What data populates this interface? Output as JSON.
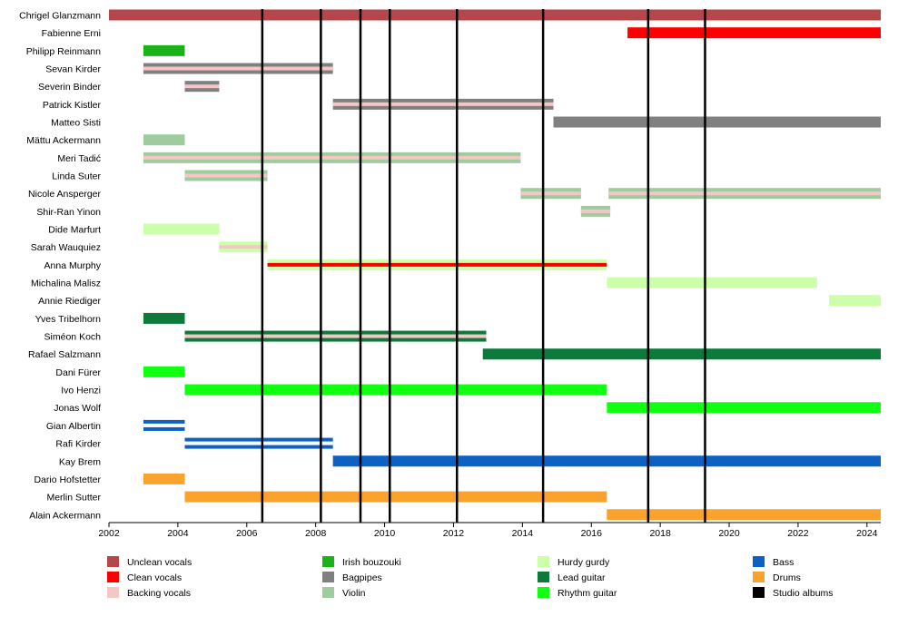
{
  "chart_data": {
    "type": "timeline",
    "x_axis": {
      "min": 2002,
      "max": 2024.4,
      "ticks": [
        2002,
        2004,
        2006,
        2008,
        2010,
        2012,
        2014,
        2016,
        2018,
        2020,
        2022,
        2024
      ],
      "tick_labels": [
        "2002",
        "2004",
        "2006",
        "2008",
        "2010",
        "2012",
        "2014",
        "2016",
        "2018",
        "2020",
        "2022",
        "2024"
      ]
    },
    "studio_albums": [
      2006.45,
      2008.15,
      2009.3,
      2010.15,
      2012.1,
      2014.6,
      2017.65,
      2019.3
    ],
    "roles": {
      "unclean": {
        "label": "Unclean vocals",
        "color": "#b5474b"
      },
      "clean": {
        "label": "Clean vocals",
        "color": "#ff0000"
      },
      "backing": {
        "label": "Backing vocals",
        "color": "#f5c6c6"
      },
      "bouzouki": {
        "label": "Irish bouzouki",
        "color": "#19b219"
      },
      "bagpipes": {
        "label": "Bagpipes",
        "color": "#808080"
      },
      "violin": {
        "label": "Violin",
        "color": "#9fcc9f"
      },
      "hurdy": {
        "label": "Hurdy gurdy",
        "color": "#ccffaa"
      },
      "lead": {
        "label": "Lead guitar",
        "color": "#0b7a3a"
      },
      "rhythm": {
        "label": "Rhythm guitar",
        "color": "#11ff11"
      },
      "bass": {
        "label": "Bass",
        "color": "#0c61c4"
      },
      "drums": {
        "label": "Drums",
        "color": "#f9a32e"
      },
      "albums": {
        "label": "Studio albums",
        "color": "#000000"
      }
    },
    "legend_columns": [
      [
        "unclean",
        "clean",
        "backing"
      ],
      [
        "bouzouki",
        "bagpipes",
        "violin"
      ],
      [
        "hurdy",
        "lead",
        "rhythm"
      ],
      [
        "bass",
        "drums",
        "albums"
      ]
    ],
    "members": [
      {
        "name": "Chrigel Glanzmann",
        "bars": [
          {
            "from": 2002,
            "to": 2024.4,
            "role": "unclean"
          }
        ]
      },
      {
        "name": "Fabienne Erni",
        "bars": [
          {
            "from": 2017.05,
            "to": 2024.4,
            "role": "clean"
          }
        ]
      },
      {
        "name": "Philipp Reinmann",
        "bars": [
          {
            "from": 2003,
            "to": 2004.2,
            "role": "bouzouki"
          }
        ]
      },
      {
        "name": "Sevan Kirder",
        "bars": [
          {
            "from": 2003,
            "to": 2008.5,
            "role": "bagpipes",
            "stripe": "backing"
          }
        ]
      },
      {
        "name": "Severin Binder",
        "bars": [
          {
            "from": 2004.2,
            "to": 2005.2,
            "role": "bagpipes",
            "stripe": "backing"
          }
        ]
      },
      {
        "name": "Patrick Kistler",
        "bars": [
          {
            "from": 2008.5,
            "to": 2014.9,
            "role": "bagpipes",
            "stripe": "backing"
          }
        ]
      },
      {
        "name": "Matteo Sisti",
        "bars": [
          {
            "from": 2014.9,
            "to": 2024.4,
            "role": "bagpipes"
          }
        ]
      },
      {
        "name": "Mättu Ackermann",
        "bars": [
          {
            "from": 2003,
            "to": 2004.2,
            "role": "violin"
          }
        ]
      },
      {
        "name": "Meri Tadić",
        "bars": [
          {
            "from": 2003,
            "to": 2013.95,
            "role": "violin",
            "stripe": "backing"
          }
        ]
      },
      {
        "name": "Linda Suter",
        "bars": [
          {
            "from": 2004.2,
            "to": 2006.6,
            "role": "violin",
            "stripe": "backing"
          }
        ]
      },
      {
        "name": "Nicole Ansperger",
        "bars": [
          {
            "from": 2013.95,
            "to": 2015.7,
            "role": "violin",
            "stripe": "backing"
          },
          {
            "from": 2016.5,
            "to": 2024.4,
            "role": "violin",
            "stripe": "backing"
          }
        ]
      },
      {
        "name": "Shir-Ran Yinon",
        "bars": [
          {
            "from": 2015.7,
            "to": 2016.55,
            "role": "violin",
            "stripe": "backing"
          }
        ]
      },
      {
        "name": "Dide Marfurt",
        "bars": [
          {
            "from": 2003,
            "to": 2005.2,
            "role": "hurdy"
          }
        ]
      },
      {
        "name": "Sarah Wauquiez",
        "bars": [
          {
            "from": 2005.2,
            "to": 2006.6,
            "role": "hurdy",
            "stripe": "backing"
          }
        ]
      },
      {
        "name": "Anna Murphy",
        "bars": [
          {
            "from": 2006.6,
            "to": 2016.45,
            "role": "hurdy",
            "stripe": "clean"
          }
        ]
      },
      {
        "name": "Michalina Malisz",
        "bars": [
          {
            "from": 2016.45,
            "to": 2022.55,
            "role": "hurdy"
          }
        ]
      },
      {
        "name": "Annie Riediger",
        "bars": [
          {
            "from": 2022.9,
            "to": 2024.4,
            "role": "hurdy"
          }
        ]
      },
      {
        "name": "Yves Tribelhorn",
        "bars": [
          {
            "from": 2003,
            "to": 2004.2,
            "role": "lead"
          }
        ]
      },
      {
        "name": "Siméon Koch",
        "bars": [
          {
            "from": 2004.2,
            "to": 2012.95,
            "role": "lead",
            "stripe": "backing"
          }
        ]
      },
      {
        "name": "Rafael Salzmann",
        "bars": [
          {
            "from": 2012.85,
            "to": 2024.4,
            "role": "lead"
          }
        ]
      },
      {
        "name": "Dani Fürer",
        "bars": [
          {
            "from": 2003,
            "to": 2004.2,
            "role": "rhythm"
          }
        ]
      },
      {
        "name": "Ivo Henzi",
        "bars": [
          {
            "from": 2004.2,
            "to": 2016.45,
            "role": "rhythm"
          }
        ]
      },
      {
        "name": "Jonas Wolf",
        "bars": [
          {
            "from": 2016.45,
            "to": 2024.4,
            "role": "rhythm"
          }
        ]
      },
      {
        "name": "Gian Albertin",
        "bars": [
          {
            "from": 2003,
            "to": 2004.2,
            "role": "bass",
            "stripe": "white"
          }
        ]
      },
      {
        "name": "Rafi Kirder",
        "bars": [
          {
            "from": 2004.2,
            "to": 2008.5,
            "role": "bass",
            "stripe": "white"
          }
        ]
      },
      {
        "name": "Kay Brem",
        "bars": [
          {
            "from": 2008.5,
            "to": 2024.4,
            "role": "bass"
          }
        ]
      },
      {
        "name": "Dario Hofstetter",
        "bars": [
          {
            "from": 2003,
            "to": 2004.2,
            "role": "drums"
          }
        ]
      },
      {
        "name": "Merlin Sutter",
        "bars": [
          {
            "from": 2004.2,
            "to": 2016.45,
            "role": "drums"
          }
        ]
      },
      {
        "name": "Alain Ackermann",
        "bars": [
          {
            "from": 2016.45,
            "to": 2024.4,
            "role": "drums"
          }
        ]
      }
    ]
  }
}
